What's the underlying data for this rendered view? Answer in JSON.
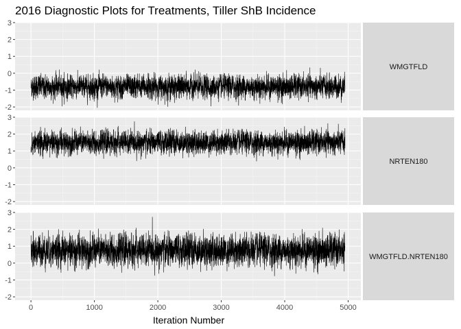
{
  "chart_data": {
    "type": "line",
    "title": "2016 Diagnostic Plots for Treatments, Tiller ShB Incidence",
    "xlabel": "Iteration Number",
    "ylabel": "",
    "xlim": [
      -250,
      5200
    ],
    "ylim": [
      -2.2,
      3.0
    ],
    "x_ticks": [
      0,
      1000,
      2000,
      3000,
      4000,
      5000
    ],
    "y_ticks": [
      -2,
      -1,
      0,
      1,
      2,
      3
    ],
    "grid": true,
    "legend": "none",
    "n_iterations": 4950,
    "line_color": "#000000",
    "panel_bg": "#ebebeb",
    "strip_bg": "#d9d9d9",
    "facets": [
      {
        "label": "WMGTFLD",
        "mean": -0.8,
        "sd": 0.33,
        "min": -2.1,
        "max": 0.45
      },
      {
        "label": "NRTEN180",
        "mean": 1.5,
        "sd": 0.33,
        "min": 0.1,
        "max": 2.75
      },
      {
        "label": "WMGTFLD.NRTEN180",
        "mean": 0.75,
        "sd": 0.45,
        "min": -1.05,
        "max": 2.8
      }
    ]
  }
}
